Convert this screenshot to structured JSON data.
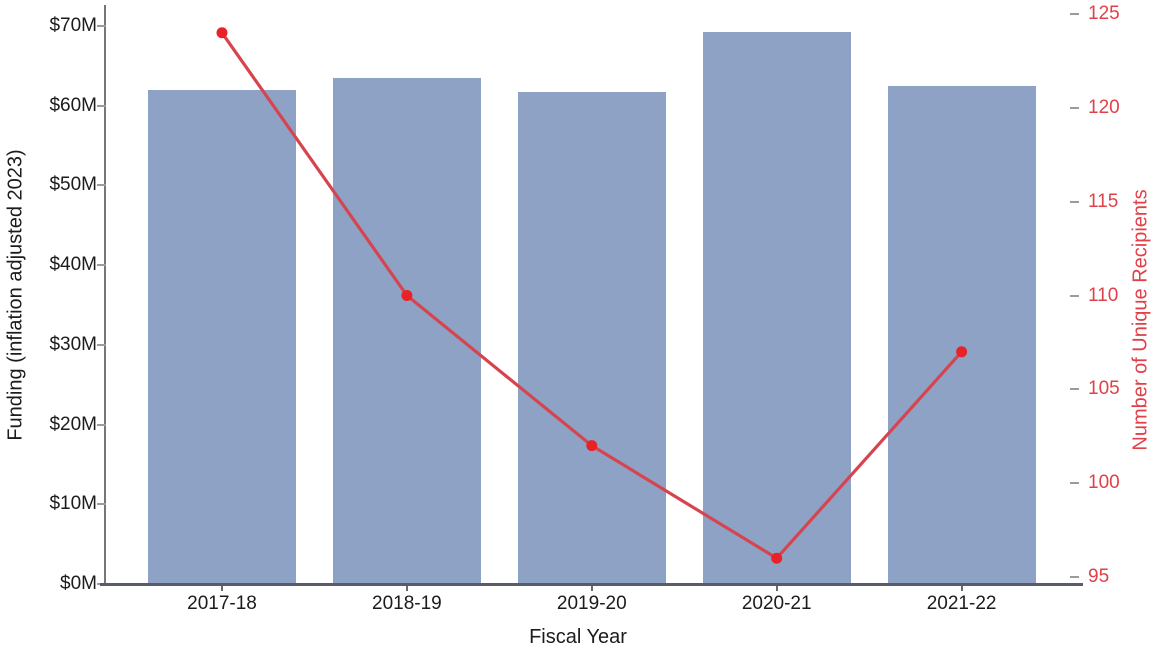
{
  "chart_data": {
    "type": "bar+line",
    "title": "",
    "xlabel": "Fiscal Year",
    "ylabel_left": "Funding (inflation adjusted 2023)",
    "ylabel_right": "Number of Unique Recipients",
    "categories": [
      "2017-18",
      "2018-19",
      "2019-20",
      "2020-21",
      "2021-22"
    ],
    "series": [
      {
        "name": "Funding (inflation adjusted 2023)",
        "type": "bar",
        "axis": "left",
        "unit": "$M",
        "values": [
          62.0,
          63.5,
          61.7,
          69.3,
          62.5
        ],
        "color": "#8ea2c6"
      },
      {
        "name": "Number of Unique Recipients",
        "type": "line",
        "axis": "right",
        "values": [
          124,
          110,
          102,
          96,
          107
        ],
        "color": "#d6454f",
        "marker_color": "#e82227"
      }
    ],
    "left_axis": {
      "min": 0,
      "max": 70,
      "step": 10,
      "tick_labels": [
        "$0M",
        "$10M",
        "$20M",
        "$30M",
        "$40M",
        "$50M",
        "$60M",
        "$70M"
      ],
      "text_color": "#1c1c1c"
    },
    "right_axis": {
      "min": 95,
      "max": 125,
      "step": 5,
      "tick_labels": [
        "95",
        "100",
        "105",
        "110",
        "115",
        "120",
        "125"
      ],
      "text_color": "#e04048"
    },
    "grid": false,
    "legend": "none"
  }
}
